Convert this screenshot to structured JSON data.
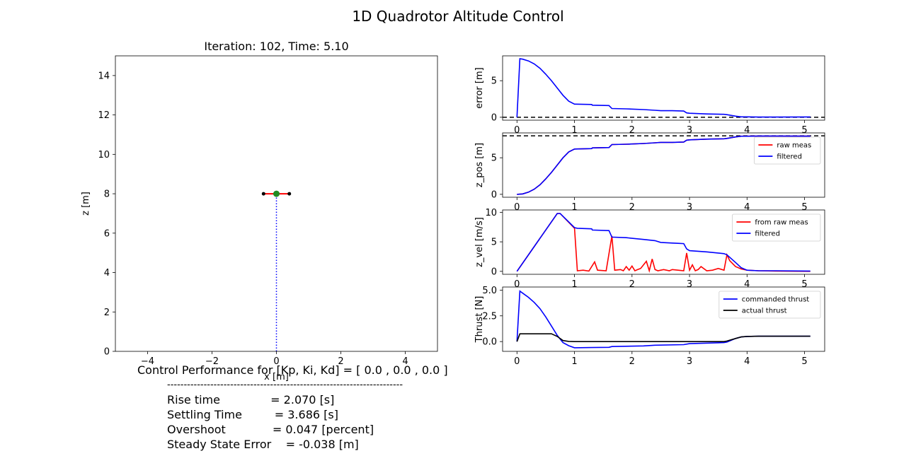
{
  "figure_title": "1D Quadrotor Altitude Control",
  "chart_data": [
    {
      "id": "sim",
      "type": "scatter",
      "title": "Iteration: 102, Time: 5.10",
      "xlabel": "x [m]",
      "ylabel": "z [m]",
      "xlim": [
        -5,
        5
      ],
      "ylim": [
        0,
        15
      ],
      "xticks": [
        -4,
        -2,
        0,
        2,
        4
      ],
      "yticks": [
        0,
        2,
        4,
        6,
        8,
        10,
        12,
        14
      ],
      "xtick_labels": [
        "−4",
        "−2",
        "0",
        "2",
        "4"
      ],
      "grid": false,
      "quad": {
        "x": 0,
        "z": 8.0,
        "arm_half_span": 0.4,
        "arm_color": "#ff0000",
        "body_color": "#228b22",
        "rotor_color": "#000000"
      },
      "path": {
        "x": 0,
        "z_from": 0,
        "z_to": 8.0,
        "style": "dotted",
        "color": "#0000ff"
      }
    },
    {
      "id": "error",
      "type": "line",
      "ylabel": "error [m]",
      "xlim": [
        -0.25,
        5.35
      ],
      "ylim": [
        -0.4,
        8.4
      ],
      "xticks": [
        0,
        1,
        2,
        3,
        4,
        5
      ],
      "yticks": [
        0,
        5
      ],
      "grid": false,
      "reference": {
        "y": 0,
        "style": "dashed",
        "color": "#000000"
      },
      "series": [
        {
          "color": "#0000ff",
          "x": [
            0,
            0.05,
            0.1,
            0.2,
            0.3,
            0.4,
            0.5,
            0.6,
            0.7,
            0.8,
            0.9,
            1.0,
            1.02,
            1.3,
            1.31,
            1.6,
            1.65,
            1.9,
            2.2,
            2.4,
            2.5,
            2.7,
            2.8,
            2.9,
            2.95,
            3.0,
            3.3,
            3.6,
            3.65,
            3.8,
            3.9,
            4.0,
            4.2,
            4.5,
            5.1
          ],
          "y": [
            0,
            8.0,
            7.95,
            7.7,
            7.3,
            6.7,
            5.9,
            5.0,
            4.0,
            3.0,
            2.2,
            1.8,
            1.8,
            1.75,
            1.65,
            1.6,
            1.2,
            1.15,
            1.05,
            0.95,
            0.9,
            0.9,
            0.88,
            0.85,
            0.6,
            0.55,
            0.45,
            0.4,
            0.35,
            0.15,
            0.05,
            0.05,
            0.03,
            0.03,
            0.04
          ]
        }
      ]
    },
    {
      "id": "zpos",
      "type": "line",
      "ylabel": "z_pos [m]",
      "xlim": [
        -0.25,
        5.35
      ],
      "ylim": [
        -0.4,
        8.4
      ],
      "xticks": [
        0,
        1,
        2,
        3,
        4,
        5
      ],
      "yticks": [
        0,
        5
      ],
      "grid": false,
      "legend": "upper-right",
      "reference": {
        "y": 8.0,
        "style": "dashed",
        "color": "#000000"
      },
      "series": [
        {
          "name": "raw meas",
          "color": "#ff0000",
          "x": [
            0,
            0.1,
            0.2,
            0.3,
            0.4,
            0.5,
            0.6,
            0.7,
            0.8,
            0.9,
            1.0,
            1.3,
            1.31,
            1.6,
            1.65,
            1.9,
            2.2,
            2.4,
            2.5,
            2.7,
            2.8,
            2.9,
            2.95,
            3.0,
            3.3,
            3.6,
            3.65,
            3.8,
            3.9,
            4.0,
            4.2,
            4.5,
            5.1
          ],
          "y": [
            0,
            0.05,
            0.3,
            0.7,
            1.3,
            2.1,
            3.0,
            4.0,
            5.0,
            5.8,
            6.2,
            6.25,
            6.35,
            6.4,
            6.8,
            6.85,
            6.95,
            7.05,
            7.1,
            7.1,
            7.12,
            7.15,
            7.4,
            7.45,
            7.55,
            7.6,
            7.65,
            7.85,
            7.95,
            7.95,
            7.97,
            7.97,
            7.96
          ]
        },
        {
          "name": "filtered",
          "color": "#0000ff",
          "x": [
            0,
            0.1,
            0.2,
            0.3,
            0.4,
            0.5,
            0.6,
            0.7,
            0.8,
            0.9,
            1.0,
            1.3,
            1.31,
            1.6,
            1.65,
            1.9,
            2.2,
            2.4,
            2.5,
            2.7,
            2.8,
            2.9,
            2.95,
            3.0,
            3.3,
            3.6,
            3.65,
            3.8,
            3.9,
            4.0,
            4.2,
            4.5,
            5.1
          ],
          "y": [
            0,
            0.05,
            0.3,
            0.7,
            1.3,
            2.1,
            3.0,
            4.0,
            5.0,
            5.8,
            6.2,
            6.25,
            6.35,
            6.4,
            6.8,
            6.85,
            6.95,
            7.05,
            7.1,
            7.1,
            7.12,
            7.15,
            7.4,
            7.45,
            7.55,
            7.6,
            7.65,
            7.85,
            7.95,
            7.95,
            7.97,
            7.97,
            7.96
          ]
        }
      ]
    },
    {
      "id": "zvel",
      "type": "line",
      "ylabel": "z_vel [m/s]",
      "xlim": [
        -0.25,
        5.35
      ],
      "ylim": [
        -0.5,
        10.4
      ],
      "xticks": [
        0,
        1,
        2,
        3,
        4,
        5
      ],
      "yticks": [
        0,
        5,
        10
      ],
      "grid": false,
      "legend": "upper-right",
      "series": [
        {
          "name": "from raw meas",
          "color": "#ff0000",
          "x": [
            0,
            0.7,
            0.75,
            1.0,
            1.05,
            1.15,
            1.25,
            1.35,
            1.4,
            1.55,
            1.65,
            1.7,
            1.8,
            1.85,
            1.9,
            1.95,
            2.0,
            2.05,
            2.1,
            2.15,
            2.25,
            2.3,
            2.35,
            2.4,
            2.45,
            2.55,
            2.65,
            2.7,
            2.8,
            2.9,
            2.95,
            3.0,
            3.05,
            3.1,
            3.15,
            3.2,
            3.3,
            3.4,
            3.5,
            3.6,
            3.65,
            3.7,
            3.8,
            3.9,
            4.0,
            4.2,
            4.5,
            5.1
          ],
          "y": [
            0,
            9.8,
            9.8,
            7.3,
            0.1,
            0.2,
            0.05,
            1.6,
            0.2,
            0.1,
            6.0,
            0.2,
            0.3,
            0.1,
            0.8,
            0.2,
            0.9,
            0.1,
            0.3,
            0.5,
            1.7,
            0.1,
            2.1,
            0.3,
            0.1,
            0.3,
            0.1,
            0.3,
            0.2,
            0.1,
            3.1,
            0.2,
            1.1,
            0.1,
            0.3,
            0.8,
            0.1,
            0.2,
            0.5,
            0.2,
            2.8,
            1.8,
            0.8,
            0.4,
            0.2,
            0.1,
            0.05,
            0.0
          ]
        },
        {
          "name": "filtered",
          "color": "#0000ff",
          "x": [
            0,
            0.7,
            0.75,
            1.0,
            1.05,
            1.3,
            1.31,
            1.6,
            1.65,
            1.9,
            2.2,
            2.4,
            2.5,
            2.7,
            2.8,
            2.9,
            2.95,
            3.0,
            3.3,
            3.6,
            3.65,
            3.8,
            3.9,
            4.0,
            4.2,
            4.5,
            5.1
          ],
          "y": [
            0,
            9.8,
            9.8,
            7.4,
            7.3,
            7.2,
            7.0,
            6.9,
            5.8,
            5.7,
            5.4,
            5.2,
            4.9,
            4.8,
            4.75,
            4.7,
            3.8,
            3.5,
            3.3,
            3.0,
            2.8,
            1.5,
            0.6,
            0.2,
            0.1,
            0.1,
            0.05
          ]
        }
      ]
    },
    {
      "id": "thrust",
      "type": "line",
      "ylabel": "Thrust [N]",
      "xlim": [
        -0.25,
        5.35
      ],
      "ylim": [
        -0.95,
        5.3
      ],
      "xticks": [
        0,
        1,
        2,
        3,
        4,
        5
      ],
      "yticks": [
        0,
        2.5,
        5
      ],
      "ytick_labels": [
        "0.0",
        "2.5",
        "5.0"
      ],
      "grid": false,
      "legend": "upper-right",
      "series": [
        {
          "name": "commanded thrust",
          "color": "#0000ff",
          "x": [
            0,
            0.05,
            0.1,
            0.2,
            0.3,
            0.4,
            0.5,
            0.6,
            0.7,
            0.8,
            0.9,
            1.0,
            1.3,
            1.6,
            1.65,
            2.2,
            2.4,
            2.9,
            3.0,
            3.6,
            3.65,
            3.8,
            3.9,
            4.0,
            4.2,
            5.1
          ],
          "y": [
            0,
            4.9,
            4.7,
            4.3,
            3.8,
            3.2,
            2.4,
            1.5,
            0.6,
            -0.1,
            -0.4,
            -0.6,
            -0.58,
            -0.56,
            -0.48,
            -0.42,
            -0.35,
            -0.3,
            -0.2,
            -0.1,
            -0.05,
            0.3,
            0.45,
            0.5,
            0.52,
            0.52
          ]
        },
        {
          "name": "actual thrust",
          "color": "#000000",
          "x": [
            0,
            0.05,
            0.6,
            0.7,
            0.8,
            0.9,
            1.0,
            3.6,
            3.65,
            3.8,
            3.9,
            4.0,
            4.2,
            5.1
          ],
          "y": [
            0,
            0.75,
            0.75,
            0.5,
            0.1,
            0.02,
            0.0,
            0.0,
            0.05,
            0.3,
            0.45,
            0.5,
            0.52,
            0.52
          ]
        }
      ]
    }
  ],
  "performance": {
    "header": "Control Performance for [Kp, Ki, Kd] = [ 0.0 , 0.0 , 0.0 ]",
    "separator": "-----------------------------------------------------------------------",
    "rise_time": "Rise time              = 2.070 [s]",
    "settling_time": "Settling Time         = 3.686 [s]",
    "overshoot": "Overshoot             = 0.047 [percent]",
    "steady_state_error": "Steady State Error    = -0.038 [m]"
  }
}
